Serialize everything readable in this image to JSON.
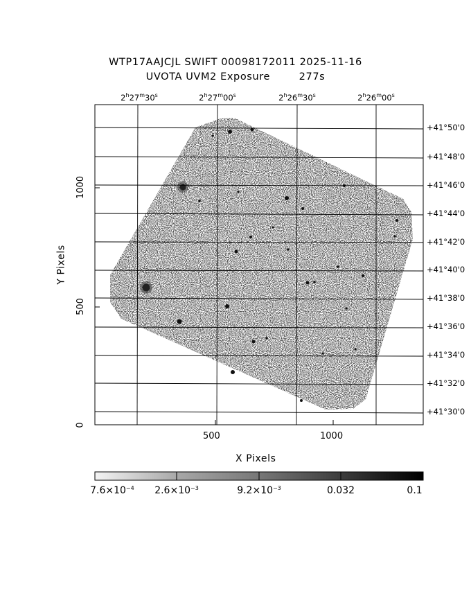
{
  "title": {
    "line1": "WTP17AAJCJL SWIFT 00098172011 2025-11-16",
    "line2": "UVOTA UVM2 Exposure        277s"
  },
  "axes": {
    "xlabel": "X Pixels",
    "ylabel": "Y Pixels",
    "x_ticks": [
      "500",
      "1000"
    ],
    "y_ticks": [
      "0",
      "500",
      "1000"
    ]
  },
  "ra_labels": [
    {
      "h": "2",
      "m": "27",
      "s": "30"
    },
    {
      "h": "2",
      "m": "27",
      "s": "00"
    },
    {
      "h": "2",
      "m": "26",
      "s": "30"
    },
    {
      "h": "2",
      "m": "26",
      "s": "00"
    }
  ],
  "dec_labels": [
    "+41°50'0",
    "+41°48'0",
    "+41°46'0",
    "+41°44'0",
    "+41°42'0",
    "+41°40'0",
    "+41°38'0",
    "+41°36'0",
    "+41°34'0",
    "+41°32'0",
    "+41°30'0"
  ],
  "colorbar": {
    "labels": [
      {
        "mant": "7.6×10",
        "exp": "−4"
      },
      {
        "mant": "2.6×10",
        "exp": "−3"
      },
      {
        "mant": "9.2×10",
        "exp": "−3"
      },
      {
        "mant": "0.032",
        "exp": ""
      },
      {
        "mant": "0.1",
        "exp": ""
      }
    ],
    "scale": "log",
    "range": [
      0.00076,
      0.1
    ]
  }
}
